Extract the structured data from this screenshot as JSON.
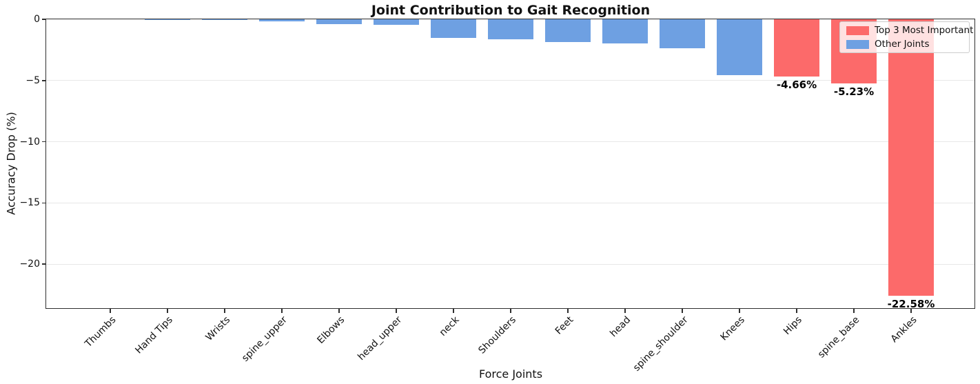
{
  "colors": {
    "top3": "#FC6A6A",
    "other": "#6EA0E2",
    "grid": "#e7e7e7",
    "spine": "#2e2e2e"
  },
  "chart_data": {
    "type": "bar",
    "title": "Joint Contribution to Gait Recognition",
    "xlabel": "Force Joints",
    "ylabel": "Accuracy Drop (%)",
    "categories": [
      "Thumbs",
      "Hand Tips",
      "Wrists",
      "spine_upper",
      "Elbows",
      "head_upper",
      "neck",
      "Shoulders",
      "Feet",
      "head",
      "spine_shoulder",
      "Knees",
      "Hips",
      "spine_base",
      "Ankles"
    ],
    "values": [
      0.0,
      -0.01,
      -0.03,
      -0.18,
      -0.38,
      -0.45,
      -1.5,
      -1.65,
      -1.85,
      -1.95,
      -2.35,
      -4.55,
      -4.66,
      -5.23,
      -22.58
    ],
    "groups": [
      "other",
      "other",
      "other",
      "other",
      "other",
      "other",
      "other",
      "other",
      "other",
      "other",
      "other",
      "other",
      "top3",
      "top3",
      "top3"
    ],
    "bar_labels": [
      "",
      "",
      "",
      "",
      "",
      "",
      "",
      "",
      "",
      "",
      "",
      "",
      "-4.66%",
      "-5.23%",
      "-22.58%"
    ],
    "ylim": [
      -23.66,
      0
    ],
    "yticks": [
      0,
      -5,
      -10,
      -15,
      -20
    ],
    "ytick_labels": [
      "0",
      "−5",
      "−10",
      "−15",
      "−20"
    ],
    "grid": true,
    "legend_position": "upper right",
    "legend": [
      {
        "label": "Top 3 Most Important",
        "group": "top3"
      },
      {
        "label": "Other Joints",
        "group": "other"
      }
    ]
  }
}
